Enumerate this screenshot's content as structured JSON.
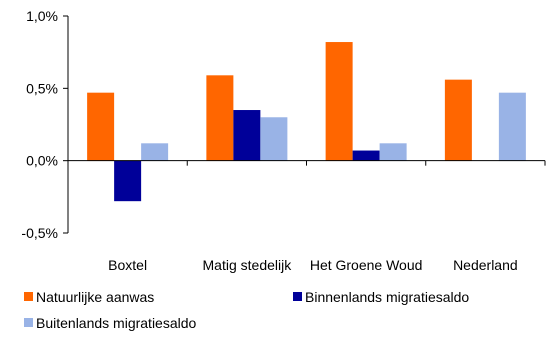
{
  "chart_data": {
    "type": "bar",
    "categories": [
      "Boxtel",
      "Matig stedelijk",
      "Het Groene Woud",
      "Nederland"
    ],
    "series": [
      {
        "name": "Natuurlijke aanwas",
        "color": "#ff6600",
        "values": [
          0.47,
          0.59,
          0.82,
          0.56
        ]
      },
      {
        "name": "Binnenlands migratiesaldo",
        "color": "#000099",
        "values": [
          -0.28,
          0.35,
          0.07,
          null
        ]
      },
      {
        "name": "Buitenlands migratiesaldo",
        "color": "#99b3e6",
        "values": [
          0.12,
          0.3,
          0.12,
          0.47
        ]
      }
    ],
    "ylim": [
      -0.5,
      1.0
    ],
    "yticks": [
      {
        "value": 1.0,
        "label": "1,0%"
      },
      {
        "value": 0.5,
        "label": "0,5%"
      },
      {
        "value": 0.0,
        "label": "0,0%"
      },
      {
        "value": -0.5,
        "label": "-0,5%"
      }
    ],
    "grid": false,
    "legend_position": "bottom",
    "title": "",
    "xlabel": "",
    "ylabel": ""
  }
}
